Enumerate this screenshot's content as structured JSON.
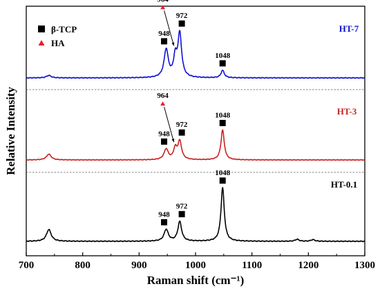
{
  "chart_data": {
    "type": "line",
    "xlabel": "Raman shift (cm⁻¹)",
    "ylabel": "Relative Intensity",
    "xlim": [
      700,
      1300
    ],
    "xticks": [
      700,
      800,
      900,
      1000,
      1100,
      1200,
      1300
    ],
    "grid": false,
    "legend": {
      "placement": "top-left",
      "entries": [
        {
          "label": "β-TCP",
          "marker": "square",
          "color": "#000000"
        },
        {
          "label": "HA",
          "marker": "triangle",
          "color": "#e8202a"
        }
      ]
    },
    "series": [
      {
        "name": "HT-7",
        "color": "#1010d0",
        "peaks": [
          {
            "x": 740,
            "h": 0.04,
            "w": 5
          },
          {
            "x": 948,
            "h": 0.45,
            "w": 4.5
          },
          {
            "x": 964,
            "h": 0.3,
            "w": 3.5
          },
          {
            "x": 972,
            "h": 0.7,
            "w": 4
          },
          {
            "x": 1048,
            "h": 0.12,
            "w": 3.5
          }
        ],
        "annotations": [
          {
            "label": "948",
            "x": 948,
            "marker": "square"
          },
          {
            "label": "964",
            "x": 964,
            "marker": "triangle"
          },
          {
            "label": "972",
            "x": 972,
            "marker": "square"
          },
          {
            "label": "1048",
            "x": 1048,
            "marker": "square"
          }
        ]
      },
      {
        "name": "HT-3",
        "color": "#c82020",
        "peaks": [
          {
            "x": 740,
            "h": 0.12,
            "w": 5
          },
          {
            "x": 948,
            "h": 0.22,
            "w": 4.5
          },
          {
            "x": 964,
            "h": 0.22,
            "w": 3.5
          },
          {
            "x": 972,
            "h": 0.38,
            "w": 4
          },
          {
            "x": 1048,
            "h": 0.62,
            "w": 3.5
          }
        ],
        "annotations": [
          {
            "label": "948",
            "x": 948,
            "marker": "square"
          },
          {
            "label": "964",
            "x": 964,
            "marker": "triangle"
          },
          {
            "label": "972",
            "x": 972,
            "marker": "square"
          },
          {
            "label": "1048",
            "x": 1048,
            "marker": "square"
          }
        ]
      },
      {
        "name": "HT-0.1",
        "color": "#000000",
        "peaks": [
          {
            "x": 740,
            "h": 0.18,
            "w": 5
          },
          {
            "x": 948,
            "h": 0.18,
            "w": 4.5
          },
          {
            "x": 972,
            "h": 0.3,
            "w": 4
          },
          {
            "x": 1048,
            "h": 0.82,
            "w": 3.5
          },
          {
            "x": 1180,
            "h": 0.03,
            "w": 4
          },
          {
            "x": 1208,
            "h": 0.025,
            "w": 4
          }
        ],
        "annotations": [
          {
            "label": "948",
            "x": 948,
            "marker": "square"
          },
          {
            "label": "972",
            "x": 972,
            "marker": "square"
          },
          {
            "label": "1048",
            "x": 1048,
            "marker": "square"
          }
        ]
      }
    ]
  }
}
